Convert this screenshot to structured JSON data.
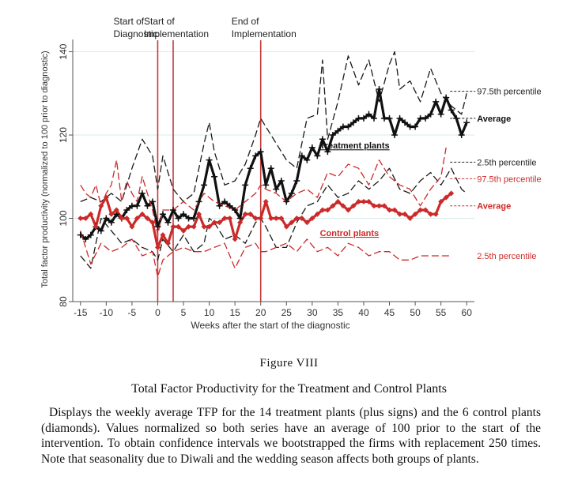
{
  "chart_data": {
    "type": "line",
    "xlabel": "Weeks after the start of the diagnostic",
    "ylabel": "Total factor productivity (normalized to 100 prior to diagnostic)",
    "xlim": [
      -16.5,
      61.5
    ],
    "ylim": [
      80,
      142
    ],
    "xticks": [
      -15,
      -10,
      -5,
      0,
      5,
      10,
      15,
      20,
      25,
      30,
      35,
      40,
      45,
      50,
      55,
      60
    ],
    "yticks": [
      80,
      100,
      120,
      140
    ],
    "grid": "horizontal",
    "events": [
      {
        "x": 0,
        "label_lines": [
          "Start of",
          "Diagnostic"
        ]
      },
      {
        "x": 3,
        "label_lines": [
          "Start of",
          "Implementation"
        ]
      },
      {
        "x": 20,
        "label_lines": [
          "End of",
          "Implementation"
        ]
      }
    ],
    "series": [
      {
        "group": "Treatment plants",
        "role": "97.5th percentile",
        "color": "#1a1a1a",
        "x": [
          -15,
          -13,
          -11,
          -9,
          -7,
          -5,
          -3,
          -1,
          0,
          1,
          3,
          5,
          7,
          9,
          10,
          11,
          13,
          15,
          17,
          19,
          20,
          21,
          23,
          25,
          27,
          29,
          31,
          32,
          33,
          35,
          37,
          39,
          41,
          43,
          45,
          46,
          47,
          49,
          51,
          53,
          55,
          57,
          59,
          60
        ],
        "y": [
          104,
          105,
          104,
          106,
          104,
          112,
          119,
          115,
          107,
          115,
          107,
          104,
          106,
          118,
          123,
          116,
          108,
          109,
          113,
          120,
          124,
          122,
          118,
          114,
          112,
          124,
          125,
          138,
          119,
          128,
          139,
          132,
          138,
          128,
          137,
          140,
          131,
          133,
          128,
          136,
          130,
          127,
          125,
          130
        ]
      },
      {
        "group": "Treatment plants",
        "role": "Average",
        "color": "#111111",
        "x": [
          -15,
          -14,
          -13,
          -12,
          -11,
          -10,
          -9,
          -8,
          -7,
          -6,
          -5,
          -4,
          -3,
          -2,
          -1,
          0,
          1,
          2,
          3,
          4,
          5,
          6,
          7,
          8,
          9,
          10,
          11,
          12,
          13,
          14,
          15,
          16,
          17,
          18,
          19,
          20,
          21,
          22,
          23,
          24,
          25,
          26,
          27,
          28,
          29,
          30,
          31,
          32,
          33,
          34,
          35,
          36,
          37,
          38,
          39,
          40,
          41,
          42,
          43,
          44,
          45,
          46,
          47,
          48,
          49,
          50,
          51,
          52,
          53,
          54,
          55,
          56,
          57,
          58,
          59,
          60
        ],
        "y": [
          96,
          95,
          96,
          98,
          97,
          100,
          99,
          101,
          100,
          102,
          103,
          103,
          106,
          103,
          104,
          98,
          101,
          99,
          102,
          100,
          101,
          100,
          100,
          104,
          108,
          114,
          110,
          103,
          104,
          103,
          102,
          100,
          108,
          112,
          115,
          116,
          108,
          112,
          107,
          109,
          104,
          106,
          109,
          115,
          114,
          117,
          115,
          119,
          116,
          120,
          121,
          122,
          122,
          123,
          124,
          124,
          125,
          124,
          131,
          124,
          124,
          120,
          124,
          123,
          122,
          122,
          124,
          124,
          125,
          128,
          125,
          129,
          126,
          124,
          120,
          123
        ]
      },
      {
        "group": "Treatment plants",
        "role": "2.5th percentile",
        "color": "#1a1a1a",
        "x": [
          -15,
          -13,
          -11,
          -9,
          -7,
          -5,
          -3,
          -1,
          0,
          1,
          3,
          5,
          7,
          9,
          10,
          11,
          13,
          15,
          17,
          19,
          20,
          21,
          23,
          25,
          27,
          29,
          31,
          33,
          35,
          37,
          39,
          41,
          43,
          45,
          47,
          49,
          51,
          53,
          55,
          57,
          59,
          60
        ],
        "y": [
          91,
          88,
          100,
          97,
          94,
          95,
          93,
          92,
          90,
          95,
          92,
          96,
          92,
          94,
          100,
          99,
          95,
          96,
          94,
          99,
          100,
          98,
          93,
          93,
          99,
          103,
          104,
          108,
          105,
          106,
          109,
          107,
          109,
          112,
          107,
          106,
          109,
          111,
          108,
          112,
          107,
          106
        ]
      },
      {
        "group": "Control plants",
        "role": "97.5th percentile",
        "color": "#cc2a2a",
        "x": [
          -15,
          -14,
          -13,
          -12,
          -11,
          -10,
          -9,
          -8,
          -7,
          -6,
          -5,
          -4,
          -3,
          -2,
          -1,
          0,
          1,
          3,
          5,
          7,
          9,
          11,
          13,
          15,
          17,
          19,
          20,
          21,
          23,
          25,
          27,
          29,
          31,
          33,
          35,
          37,
          39,
          41,
          43,
          45,
          47,
          49,
          51,
          53,
          55,
          56
        ],
        "y": [
          108,
          106,
          105,
          108,
          103,
          106,
          108,
          114,
          104,
          109,
          106,
          104,
          110,
          106,
          102,
          96,
          102,
          102,
          104,
          102,
          106,
          104,
          103,
          102,
          104,
          106,
          108,
          107,
          106,
          104,
          106,
          107,
          105,
          111,
          110,
          113,
          112,
          108,
          114,
          110,
          108,
          107,
          103,
          107,
          110,
          117
        ]
      },
      {
        "group": "Control plants",
        "role": "Average",
        "color": "#cc2a2a",
        "x": [
          -15,
          -14,
          -13,
          -12,
          -11,
          -10,
          -9,
          -8,
          -7,
          -6,
          -5,
          -4,
          -3,
          -2,
          -1,
          0,
          1,
          2,
          3,
          4,
          5,
          6,
          7,
          8,
          9,
          10,
          11,
          12,
          13,
          14,
          15,
          16,
          17,
          18,
          19,
          20,
          21,
          22,
          23,
          24,
          25,
          26,
          27,
          28,
          29,
          30,
          31,
          32,
          33,
          34,
          35,
          36,
          37,
          38,
          39,
          40,
          41,
          42,
          43,
          44,
          45,
          46,
          47,
          48,
          49,
          50,
          51,
          52,
          53,
          54,
          55,
          56,
          57
        ],
        "y": [
          100,
          100,
          101,
          98,
          103,
          105,
          101,
          102,
          100,
          100,
          98,
          100,
          101,
          100,
          99,
          93,
          96,
          94,
          98,
          98,
          97,
          98,
          98,
          101,
          98,
          98,
          99,
          99,
          100,
          100,
          95,
          99,
          101,
          101,
          100,
          100,
          104,
          100,
          100,
          100,
          98,
          99,
          100,
          100,
          99,
          100,
          101,
          102,
          102,
          103,
          104,
          103,
          102,
          103,
          104,
          104,
          104,
          103,
          103,
          103,
          102,
          102,
          101,
          101,
          100,
          101,
          102,
          102,
          101,
          101,
          104,
          105,
          106
        ]
      },
      {
        "group": "Control plants",
        "role": "2.5th percentile",
        "color": "#cc2a2a",
        "x": [
          -15,
          -13,
          -11,
          -9,
          -7,
          -5,
          -3,
          -1,
          0,
          1,
          3,
          5,
          7,
          9,
          11,
          13,
          15,
          17,
          19,
          20,
          21,
          23,
          25,
          27,
          29,
          31,
          33,
          35,
          37,
          39,
          41,
          43,
          45,
          47,
          49,
          51,
          53,
          55,
          57
        ],
        "y": [
          97,
          89,
          94,
          92,
          93,
          95,
          91,
          92,
          86,
          90,
          92,
          93,
          92,
          92,
          93,
          94,
          88,
          93,
          94,
          92,
          92,
          93,
          94,
          92,
          95,
          92,
          93,
          91,
          94,
          93,
          91,
          92,
          92,
          90,
          90,
          91,
          91,
          91,
          91
        ]
      }
    ],
    "annotations": [
      {
        "text": "97.5th percentile",
        "style": "dash",
        "color": "#222222",
        "bold": false,
        "underline": false,
        "x": 62,
        "y": 130.5
      },
      {
        "text": "Average",
        "style": "dash",
        "color": "#111111",
        "bold": true,
        "underline": false,
        "x": 62,
        "y": 124
      },
      {
        "text": "Treatment plants",
        "style": "none",
        "color": "#111111",
        "bold": true,
        "underline": true,
        "x": 31.5,
        "y": 117.5
      },
      {
        "text": "2.5th percentile",
        "style": "dash",
        "color": "#222222",
        "bold": false,
        "underline": false,
        "x": 62,
        "y": 113.5
      },
      {
        "text": "97.5th percentile",
        "style": "dash",
        "color": "#cc2a2a",
        "bold": false,
        "underline": false,
        "x": 62,
        "y": 109.5
      },
      {
        "text": "Average",
        "style": "dash",
        "color": "#cc2a2a",
        "bold": true,
        "underline": false,
        "x": 62,
        "y": 103
      },
      {
        "text": "Control plants",
        "style": "none",
        "color": "#cc2a2a",
        "bold": true,
        "underline": true,
        "x": 31.5,
        "y": 96.5
      },
      {
        "text": "2.5th percentile",
        "style": "none",
        "color": "#cc2a2a",
        "bold": false,
        "underline": false,
        "x": 62,
        "y": 91
      }
    ]
  },
  "caption": {
    "figure_number": "Figure VIII",
    "title": "Total Factor Productivity for the Treatment and Control Plants",
    "description": "Displays the weekly average TFP for the 14 treatment plants (plus signs) and the 6 control plants (diamonds). Values normalized so both series have an average of 100 prior to the start of the intervention. To obtain confidence intervals we bootstrapped the firms with replacement 250 times. Note that seasonality due to Diwali and the wedding season affects both groups of plants."
  }
}
